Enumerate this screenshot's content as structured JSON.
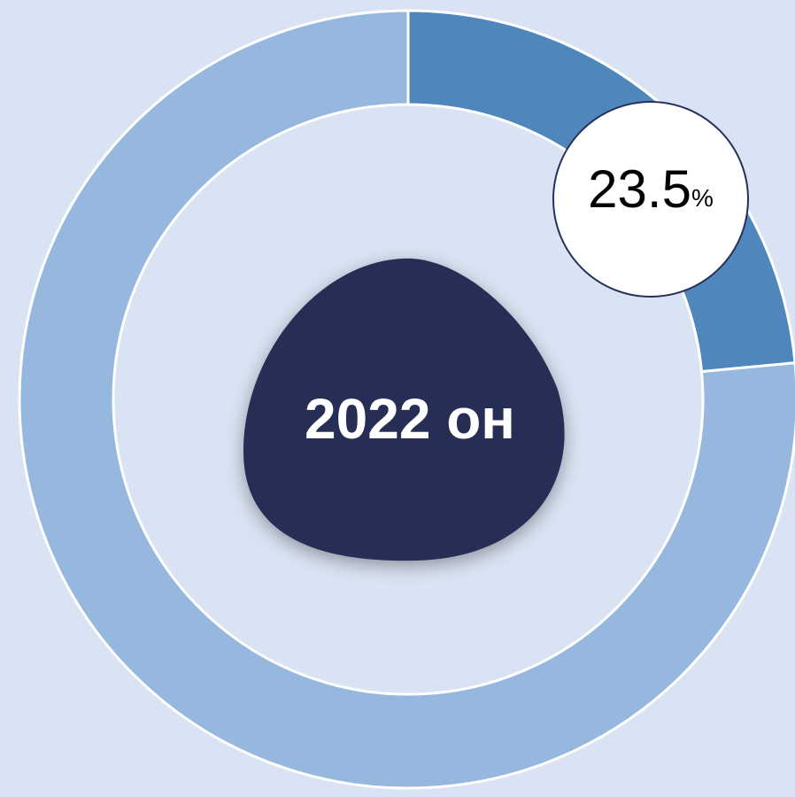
{
  "chart_data": {
    "type": "pie",
    "donut": true,
    "categories": [
      null,
      null
    ],
    "values": [
      23.5,
      76.5
    ],
    "value_unit": "%",
    "colors": [
      "#4f87bd",
      "#97b8de"
    ],
    "center_label": "2022 он"
  }
}
